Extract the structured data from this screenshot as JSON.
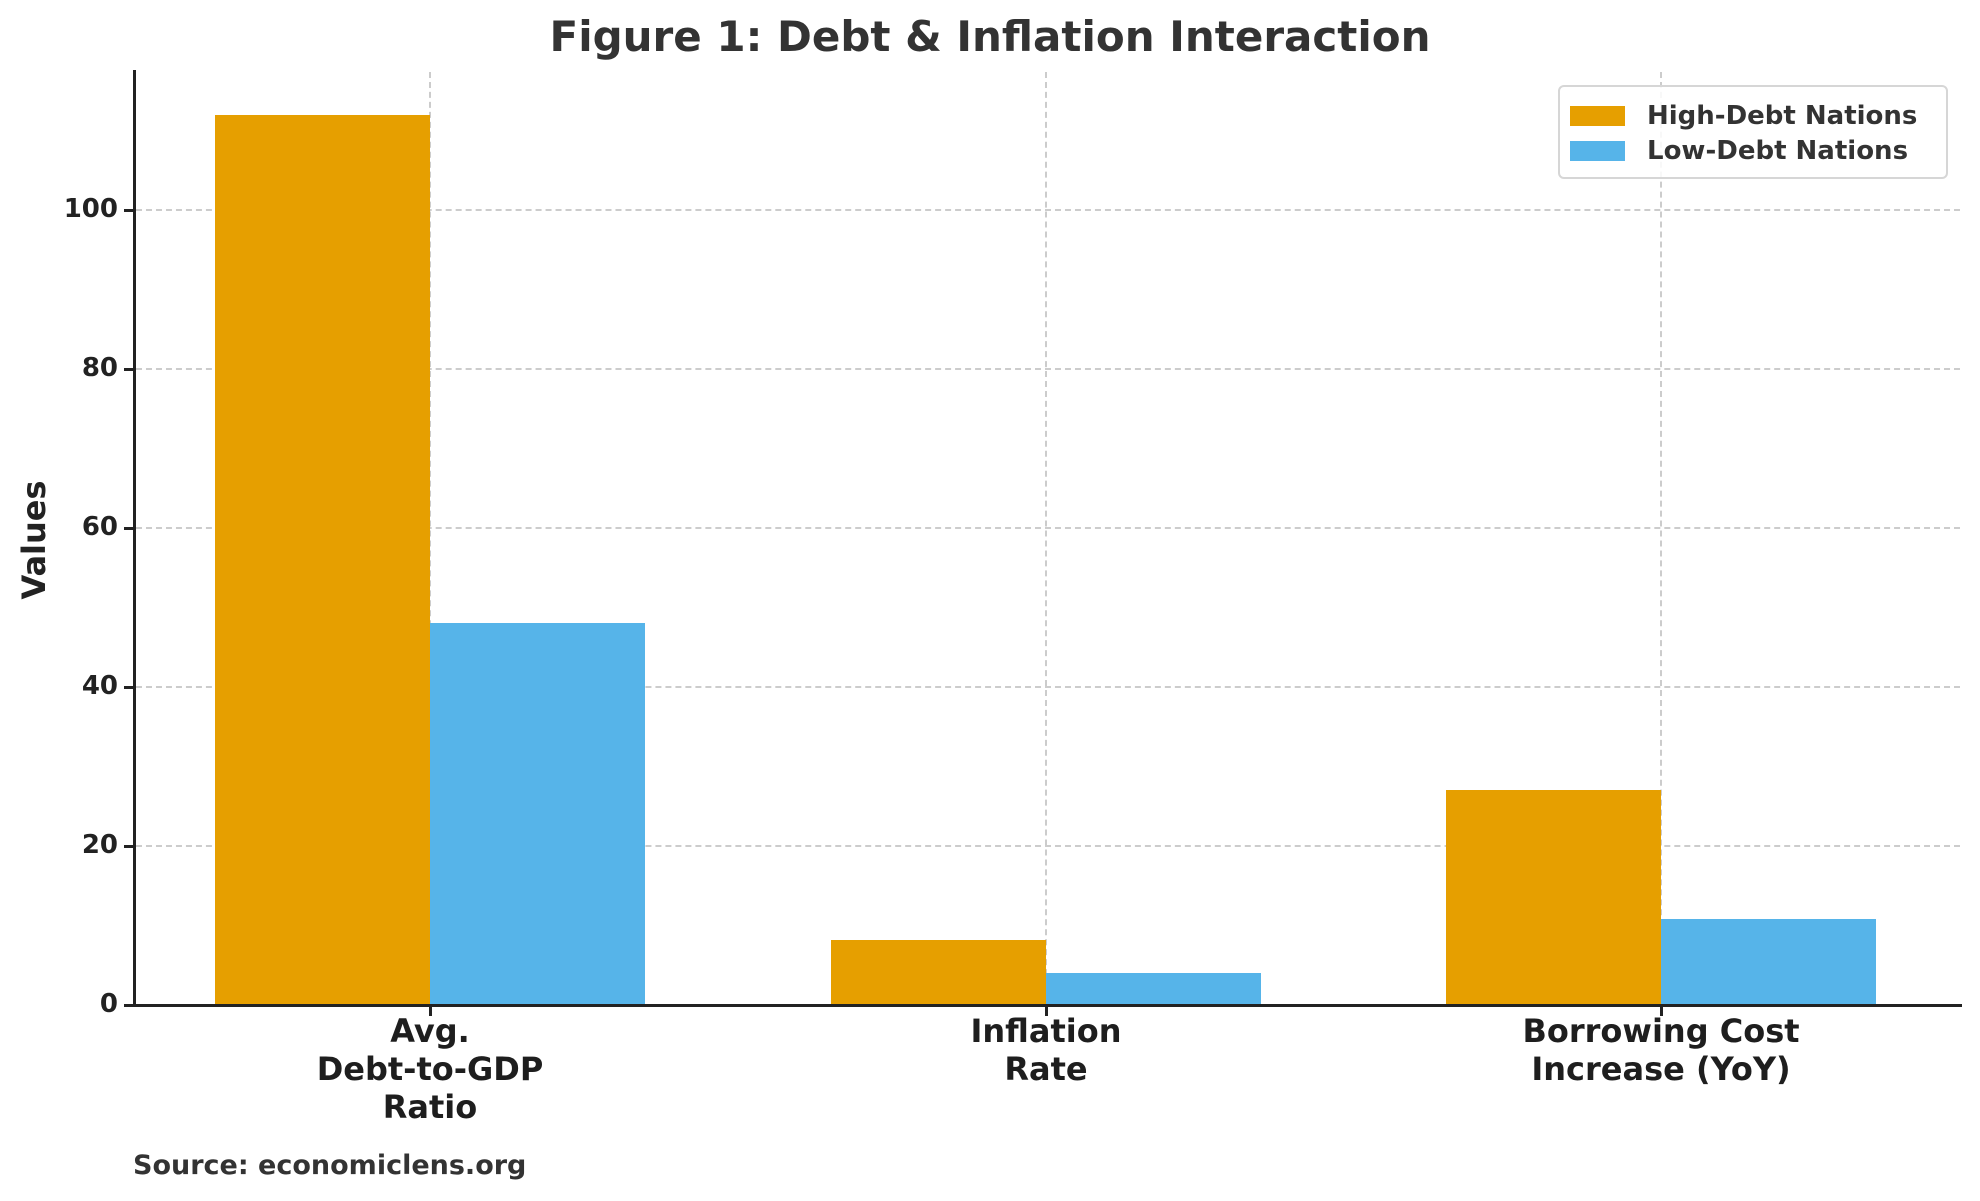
{
  "chart_data": {
    "type": "bar",
    "title": "Figure 1: Debt & Inflation Interaction",
    "xlabel": "",
    "ylabel": "Values",
    "categories": [
      "Avg.\nDebt-to-GDP\nRatio",
      "Inflation\nRate",
      "Borrowing Cost\nIncrease (YoY)"
    ],
    "series": [
      {
        "name": "High-Debt Nations",
        "color": "#E69F00",
        "values": [
          112,
          8.2,
          27
        ]
      },
      {
        "name": "Low-Debt Nations",
        "color": "#56B4E9",
        "values": [
          48,
          4.0,
          10.8
        ]
      }
    ],
    "ylim": [
      0,
      117.6
    ],
    "yticks": [
      0,
      20,
      40,
      60,
      80,
      100
    ],
    "grid": true,
    "grid_style": "dashed",
    "legend_position": "upper right",
    "annotation": "Source: economiclens.org"
  },
  "title": "Figure 1: Debt & Inflation Interaction",
  "y_axis_title": "Values",
  "y_ticks": [
    "0",
    "20",
    "40",
    "60",
    "80",
    "100"
  ],
  "x_labels": [
    "Avg.\nDebt-to-GDP\nRatio",
    "Inflation\nRate",
    "Borrowing Cost\nIncrease (YoY)"
  ],
  "legend": {
    "items": [
      {
        "label": "High-Debt Nations",
        "color": "#E69F00"
      },
      {
        "label": "Low-Debt Nations",
        "color": "#56B4E9"
      }
    ]
  },
  "source": "Source: economiclens.org"
}
